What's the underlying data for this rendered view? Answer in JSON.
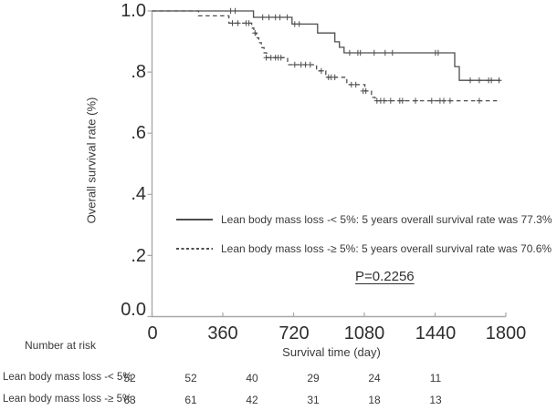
{
  "chart_data": {
    "type": "line",
    "subtype": "kaplan-meier-step",
    "title": "",
    "xlabel": "Survival time (day)",
    "ylabel": "Overall survival rate (%)",
    "xlim": [
      0,
      1800
    ],
    "ylim": [
      0,
      1.0
    ],
    "grid": false,
    "x_ticks": [
      "0",
      "360",
      "720",
      "1080",
      "1440",
      "1800"
    ],
    "y_ticks": [
      "1.0",
      ".8",
      ".6",
      ".4",
      ".2",
      "0.0"
    ],
    "p_value_label": "P=0.2256",
    "legend_position": "center-inside",
    "legend": [
      {
        "label": "Lean body mass loss -< 5%: 5 years overall survival rate was 77.3%",
        "line_style": "solid"
      },
      {
        "label": "Lean body mass loss -≥ 5%: 5 years overall survival rate was 70.6%",
        "line_style": "dashed"
      }
    ],
    "series": [
      {
        "name": "Lean body mass loss -< 5%",
        "line_style": "solid",
        "five_year_survival": "77.3%",
        "end_day": 1772,
        "steps": [
          [
            0,
            1.0
          ],
          [
            516,
            0.979
          ],
          [
            712,
            0.957
          ],
          [
            842,
            0.928
          ],
          [
            930,
            0.899
          ],
          [
            953,
            0.881
          ],
          [
            977,
            0.863
          ],
          [
            1540,
            0.818
          ],
          [
            1563,
            0.773
          ]
        ],
        "censors": [
          [
            400,
            1.0
          ],
          [
            423,
            1.0
          ],
          [
            563,
            0.979
          ],
          [
            595,
            0.979
          ],
          [
            628,
            0.979
          ],
          [
            651,
            0.979
          ],
          [
            688,
            0.979
          ],
          [
            726,
            0.957
          ],
          [
            749,
            0.957
          ],
          [
            1005,
            0.863
          ],
          [
            1047,
            0.863
          ],
          [
            1060,
            0.863
          ],
          [
            1130,
            0.863
          ],
          [
            1186,
            0.863
          ],
          [
            1223,
            0.863
          ],
          [
            1442,
            0.863
          ],
          [
            1456,
            0.863
          ],
          [
            1619,
            0.773
          ],
          [
            1665,
            0.773
          ],
          [
            1712,
            0.773
          ],
          [
            1726,
            0.773
          ],
          [
            1765,
            0.773
          ]
        ]
      },
      {
        "name": "Lean body mass loss -≥ 5%",
        "line_style": "dashed",
        "five_year_survival": "70.6%",
        "end_day": 1772,
        "steps": [
          [
            0,
            1.0
          ],
          [
            237,
            0.984
          ],
          [
            391,
            0.96
          ],
          [
            507,
            0.944
          ],
          [
            518,
            0.928
          ],
          [
            530,
            0.912
          ],
          [
            543,
            0.896
          ],
          [
            556,
            0.88
          ],
          [
            570,
            0.863
          ],
          [
            583,
            0.847
          ],
          [
            690,
            0.824
          ],
          [
            837,
            0.804
          ],
          [
            884,
            0.783
          ],
          [
            991,
            0.759
          ],
          [
            1083,
            0.738
          ],
          [
            1116,
            0.717
          ],
          [
            1135,
            0.706
          ]
        ],
        "censors": [
          [
            409,
            0.96
          ],
          [
            437,
            0.96
          ],
          [
            479,
            0.96
          ],
          [
            493,
            0.96
          ],
          [
            524,
            0.928
          ],
          [
            581,
            0.847
          ],
          [
            605,
            0.847
          ],
          [
            628,
            0.847
          ],
          [
            642,
            0.847
          ],
          [
            656,
            0.847
          ],
          [
            726,
            0.824
          ],
          [
            758,
            0.824
          ],
          [
            781,
            0.824
          ],
          [
            805,
            0.824
          ],
          [
            861,
            0.804
          ],
          [
            898,
            0.783
          ],
          [
            912,
            0.783
          ],
          [
            930,
            0.783
          ],
          [
            1014,
            0.759
          ],
          [
            1037,
            0.759
          ],
          [
            1074,
            0.738
          ],
          [
            1088,
            0.738
          ],
          [
            1144,
            0.706
          ],
          [
            1163,
            0.706
          ],
          [
            1181,
            0.706
          ],
          [
            1214,
            0.706
          ],
          [
            1260,
            0.706
          ],
          [
            1274,
            0.706
          ],
          [
            1340,
            0.706
          ],
          [
            1423,
            0.706
          ],
          [
            1465,
            0.706
          ],
          [
            1484,
            0.706
          ],
          [
            1516,
            0.706
          ],
          [
            1665,
            0.706
          ]
        ]
      }
    ],
    "number_at_risk": {
      "title": "Number at risk",
      "time_points": [
        0,
        360,
        720,
        1080,
        1440,
        1800
      ],
      "rows": [
        {
          "label": "Lean body mass loss -< 5%",
          "values": [
            52,
            52,
            40,
            29,
            24,
            11
          ]
        },
        {
          "label": "Lean body mass loss -≥ 5%",
          "values": [
            63,
            61,
            42,
            31,
            18,
            13
          ]
        }
      ]
    }
  },
  "colors": {
    "curve": "#4d4d4d",
    "axis": "#a8a8a8",
    "text": "#3a3a3a",
    "background": "#ffffff"
  }
}
